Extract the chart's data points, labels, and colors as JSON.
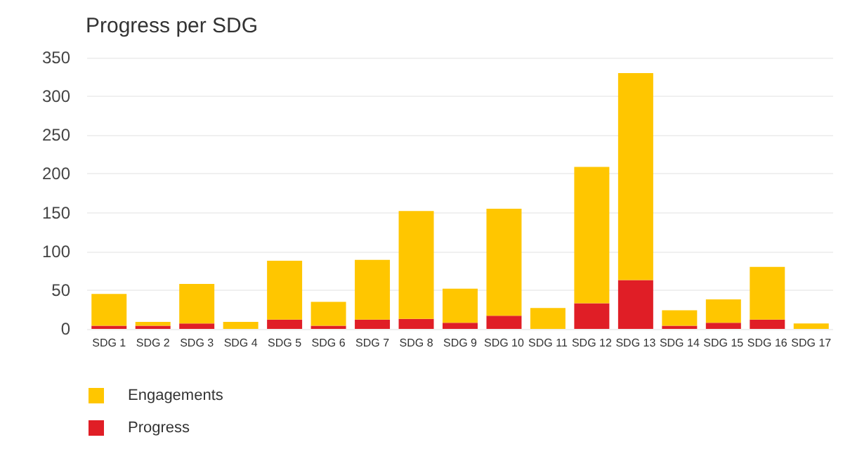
{
  "chart_data": {
    "type": "bar",
    "title": "Progress per SDG",
    "stacked": true,
    "categories": [
      "SDG 1",
      "SDG 2",
      "SDG 3",
      "SDG 4",
      "SDG 5",
      "SDG 6",
      "SDG 7",
      "SDG 8",
      "SDG 9",
      "SDG 10",
      "SDG 11",
      "SDG 12",
      "SDG 13",
      "SDG 14",
      "SDG 15",
      "SDG 16",
      "SDG 17"
    ],
    "series": [
      {
        "name": "Progress",
        "color": "#e01e26",
        "values": [
          4,
          4,
          7,
          0,
          12,
          4,
          12,
          13,
          8,
          17,
          0,
          33,
          63,
          4,
          8,
          12,
          0
        ]
      },
      {
        "name": "Engagements",
        "color": "#ffc600",
        "values": [
          41,
          5,
          51,
          9,
          76,
          31,
          77,
          139,
          44,
          138,
          27,
          176,
          267,
          20,
          30,
          68,
          7
        ]
      }
    ],
    "ylim": [
      0,
      350
    ],
    "yticks": [
      0,
      50,
      100,
      150,
      200,
      250,
      300,
      350
    ],
    "grid": "y",
    "legend": "bottom left"
  }
}
